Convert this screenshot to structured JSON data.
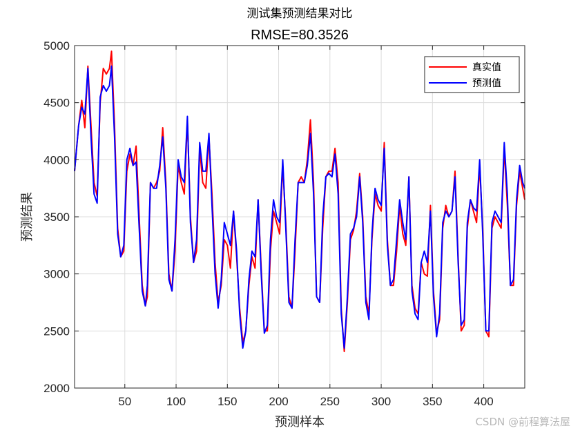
{
  "chart_data": {
    "type": "line",
    "title": "测试集预测结果对比",
    "subtitle": "RMSE=80.3526",
    "xlabel": "预测样本",
    "ylabel": "预测结果",
    "xlim": [
      1,
      440
    ],
    "ylim": [
      2000,
      5000
    ],
    "xticks": [
      50,
      100,
      150,
      200,
      250,
      300,
      350,
      400
    ],
    "yticks": [
      2000,
      2500,
      3000,
      3500,
      4000,
      4500,
      5000
    ],
    "grid": true,
    "legend_position": "top-right",
    "series": [
      {
        "name": "真实值",
        "color": "#ff0000",
        "points": [
          [
            1,
            3900
          ],
          [
            5,
            4300
          ],
          [
            8,
            4520
          ],
          [
            11,
            4280
          ],
          [
            14,
            4820
          ],
          [
            17,
            4300
          ],
          [
            20,
            3800
          ],
          [
            23,
            3680
          ],
          [
            26,
            4500
          ],
          [
            29,
            4800
          ],
          [
            32,
            4750
          ],
          [
            35,
            4800
          ],
          [
            37,
            4950
          ],
          [
            40,
            4300
          ],
          [
            43,
            3400
          ],
          [
            46,
            3150
          ],
          [
            49,
            3200
          ],
          [
            52,
            3900
          ],
          [
            55,
            4050
          ],
          [
            58,
            3950
          ],
          [
            61,
            4120
          ],
          [
            64,
            3500
          ],
          [
            67,
            2900
          ],
          [
            70,
            2720
          ],
          [
            72,
            2800
          ],
          [
            75,
            3800
          ],
          [
            78,
            3750
          ],
          [
            81,
            3800
          ],
          [
            84,
            3900
          ],
          [
            87,
            4280
          ],
          [
            90,
            3800
          ],
          [
            93,
            3000
          ],
          [
            96,
            2850
          ],
          [
            99,
            3200
          ],
          [
            102,
            3950
          ],
          [
            105,
            3800
          ],
          [
            108,
            3700
          ],
          [
            111,
            4350
          ],
          [
            114,
            3500
          ],
          [
            117,
            3100
          ],
          [
            120,
            3200
          ],
          [
            123,
            4100
          ],
          [
            126,
            3800
          ],
          [
            129,
            3750
          ],
          [
            132,
            4200
          ],
          [
            135,
            3700
          ],
          [
            138,
            3100
          ],
          [
            141,
            2750
          ],
          [
            144,
            2900
          ],
          [
            147,
            3300
          ],
          [
            150,
            3250
          ],
          [
            153,
            3050
          ],
          [
            156,
            3550
          ],
          [
            159,
            3150
          ],
          [
            162,
            2700
          ],
          [
            165,
            2400
          ],
          [
            168,
            2500
          ],
          [
            171,
            2900
          ],
          [
            174,
            3150
          ],
          [
            177,
            3050
          ],
          [
            180,
            3650
          ],
          [
            183,
            3050
          ],
          [
            186,
            2500
          ],
          [
            189,
            2500
          ],
          [
            192,
            3200
          ],
          [
            195,
            3550
          ],
          [
            198,
            3450
          ],
          [
            201,
            3350
          ],
          [
            204,
            3950
          ],
          [
            207,
            3450
          ],
          [
            210,
            2800
          ],
          [
            213,
            2700
          ],
          [
            216,
            3200
          ],
          [
            219,
            3800
          ],
          [
            222,
            3850
          ],
          [
            225,
            3800
          ],
          [
            228,
            4000
          ],
          [
            231,
            4350
          ],
          [
            234,
            3800
          ],
          [
            237,
            2800
          ],
          [
            240,
            2750
          ],
          [
            243,
            3400
          ],
          [
            246,
            3850
          ],
          [
            249,
            3900
          ],
          [
            252,
            3900
          ],
          [
            255,
            4100
          ],
          [
            258,
            3800
          ],
          [
            261,
            2700
          ],
          [
            264,
            2320
          ],
          [
            267,
            2750
          ],
          [
            270,
            3300
          ],
          [
            273,
            3380
          ],
          [
            276,
            3550
          ],
          [
            279,
            3880
          ],
          [
            282,
            3500
          ],
          [
            285,
            2800
          ],
          [
            288,
            2650
          ],
          [
            291,
            3300
          ],
          [
            294,
            3700
          ],
          [
            297,
            3600
          ],
          [
            300,
            3550
          ],
          [
            303,
            4150
          ],
          [
            306,
            3300
          ],
          [
            309,
            2900
          ],
          [
            312,
            2900
          ],
          [
            315,
            3200
          ],
          [
            318,
            3600
          ],
          [
            321,
            3350
          ],
          [
            324,
            3250
          ],
          [
            327,
            3850
          ],
          [
            330,
            2900
          ],
          [
            333,
            2700
          ],
          [
            336,
            2650
          ],
          [
            339,
            3100
          ],
          [
            342,
            3000
          ],
          [
            345,
            2980
          ],
          [
            348,
            3600
          ],
          [
            351,
            2850
          ],
          [
            354,
            2480
          ],
          [
            357,
            2600
          ],
          [
            360,
            3400
          ],
          [
            363,
            3600
          ],
          [
            366,
            3500
          ],
          [
            369,
            3550
          ],
          [
            372,
            3900
          ],
          [
            375,
            3150
          ],
          [
            378,
            2500
          ],
          [
            381,
            2550
          ],
          [
            384,
            3400
          ],
          [
            387,
            3650
          ],
          [
            390,
            3550
          ],
          [
            393,
            3450
          ],
          [
            396,
            3950
          ],
          [
            399,
            3400
          ],
          [
            402,
            2500
          ],
          [
            405,
            2450
          ],
          [
            408,
            3400
          ],
          [
            411,
            3500
          ],
          [
            414,
            3450
          ],
          [
            417,
            3400
          ],
          [
            420,
            4100
          ],
          [
            423,
            3600
          ],
          [
            426,
            2900
          ],
          [
            429,
            2900
          ],
          [
            432,
            3600
          ],
          [
            435,
            3900
          ],
          [
            438,
            3750
          ],
          [
            440,
            3650
          ]
        ]
      },
      {
        "name": "预测值",
        "color": "#0000ff",
        "points": [
          [
            1,
            3900
          ],
          [
            5,
            4300
          ],
          [
            8,
            4460
          ],
          [
            11,
            4400
          ],
          [
            14,
            4800
          ],
          [
            17,
            4200
          ],
          [
            20,
            3700
          ],
          [
            23,
            3620
          ],
          [
            26,
            4550
          ],
          [
            29,
            4650
          ],
          [
            32,
            4600
          ],
          [
            35,
            4650
          ],
          [
            37,
            4820
          ],
          [
            40,
            4200
          ],
          [
            43,
            3350
          ],
          [
            46,
            3150
          ],
          [
            49,
            3250
          ],
          [
            52,
            4000
          ],
          [
            55,
            4100
          ],
          [
            58,
            3950
          ],
          [
            61,
            3980
          ],
          [
            64,
            3400
          ],
          [
            67,
            2850
          ],
          [
            70,
            2720
          ],
          [
            72,
            2900
          ],
          [
            75,
            3800
          ],
          [
            78,
            3750
          ],
          [
            81,
            3750
          ],
          [
            84,
            3950
          ],
          [
            87,
            4200
          ],
          [
            90,
            3750
          ],
          [
            93,
            2950
          ],
          [
            96,
            2850
          ],
          [
            99,
            3300
          ],
          [
            102,
            4000
          ],
          [
            105,
            3850
          ],
          [
            108,
            3800
          ],
          [
            111,
            4380
          ],
          [
            114,
            3450
          ],
          [
            117,
            3100
          ],
          [
            120,
            3300
          ],
          [
            123,
            4150
          ],
          [
            126,
            3900
          ],
          [
            129,
            3900
          ],
          [
            132,
            4230
          ],
          [
            135,
            3600
          ],
          [
            138,
            3000
          ],
          [
            141,
            2700
          ],
          [
            144,
            2950
          ],
          [
            147,
            3450
          ],
          [
            150,
            3350
          ],
          [
            153,
            3250
          ],
          [
            156,
            3550
          ],
          [
            159,
            3200
          ],
          [
            162,
            2650
          ],
          [
            165,
            2350
          ],
          [
            168,
            2500
          ],
          [
            171,
            2950
          ],
          [
            174,
            3200
          ],
          [
            177,
            3150
          ],
          [
            180,
            3650
          ],
          [
            183,
            3000
          ],
          [
            186,
            2480
          ],
          [
            189,
            2550
          ],
          [
            192,
            3300
          ],
          [
            195,
            3650
          ],
          [
            198,
            3500
          ],
          [
            201,
            3450
          ],
          [
            204,
            4000
          ],
          [
            207,
            3400
          ],
          [
            210,
            2750
          ],
          [
            213,
            2700
          ],
          [
            216,
            3300
          ],
          [
            219,
            3800
          ],
          [
            222,
            3800
          ],
          [
            225,
            3800
          ],
          [
            228,
            3950
          ],
          [
            231,
            4230
          ],
          [
            234,
            3700
          ],
          [
            237,
            2800
          ],
          [
            240,
            2750
          ],
          [
            243,
            3500
          ],
          [
            246,
            3850
          ],
          [
            249,
            3880
          ],
          [
            252,
            3850
          ],
          [
            255,
            4050
          ],
          [
            258,
            3700
          ],
          [
            261,
            2650
          ],
          [
            264,
            2350
          ],
          [
            267,
            2800
          ],
          [
            270,
            3350
          ],
          [
            273,
            3400
          ],
          [
            276,
            3500
          ],
          [
            279,
            3850
          ],
          [
            282,
            3450
          ],
          [
            285,
            2750
          ],
          [
            288,
            2600
          ],
          [
            291,
            3350
          ],
          [
            294,
            3750
          ],
          [
            297,
            3650
          ],
          [
            300,
            3600
          ],
          [
            303,
            4100
          ],
          [
            306,
            3250
          ],
          [
            309,
            2900
          ],
          [
            312,
            2950
          ],
          [
            315,
            3300
          ],
          [
            318,
            3650
          ],
          [
            321,
            3450
          ],
          [
            324,
            3300
          ],
          [
            327,
            3850
          ],
          [
            330,
            2850
          ],
          [
            333,
            2650
          ],
          [
            336,
            2600
          ],
          [
            339,
            3100
          ],
          [
            342,
            3200
          ],
          [
            345,
            3100
          ],
          [
            348,
            3550
          ],
          [
            351,
            2800
          ],
          [
            354,
            2450
          ],
          [
            357,
            2650
          ],
          [
            360,
            3450
          ],
          [
            363,
            3550
          ],
          [
            366,
            3500
          ],
          [
            369,
            3550
          ],
          [
            372,
            3850
          ],
          [
            375,
            3100
          ],
          [
            378,
            2550
          ],
          [
            381,
            2600
          ],
          [
            384,
            3450
          ],
          [
            387,
            3650
          ],
          [
            390,
            3580
          ],
          [
            393,
            3550
          ],
          [
            396,
            4000
          ],
          [
            399,
            3350
          ],
          [
            402,
            2500
          ],
          [
            405,
            2500
          ],
          [
            408,
            3450
          ],
          [
            411,
            3550
          ],
          [
            414,
            3500
          ],
          [
            417,
            3450
          ],
          [
            420,
            4150
          ],
          [
            423,
            3700
          ],
          [
            426,
            2900
          ],
          [
            429,
            2950
          ],
          [
            432,
            3650
          ],
          [
            435,
            3950
          ],
          [
            438,
            3800
          ],
          [
            440,
            3750
          ]
        ]
      }
    ]
  },
  "watermark": "CSDN @前程算法屋"
}
